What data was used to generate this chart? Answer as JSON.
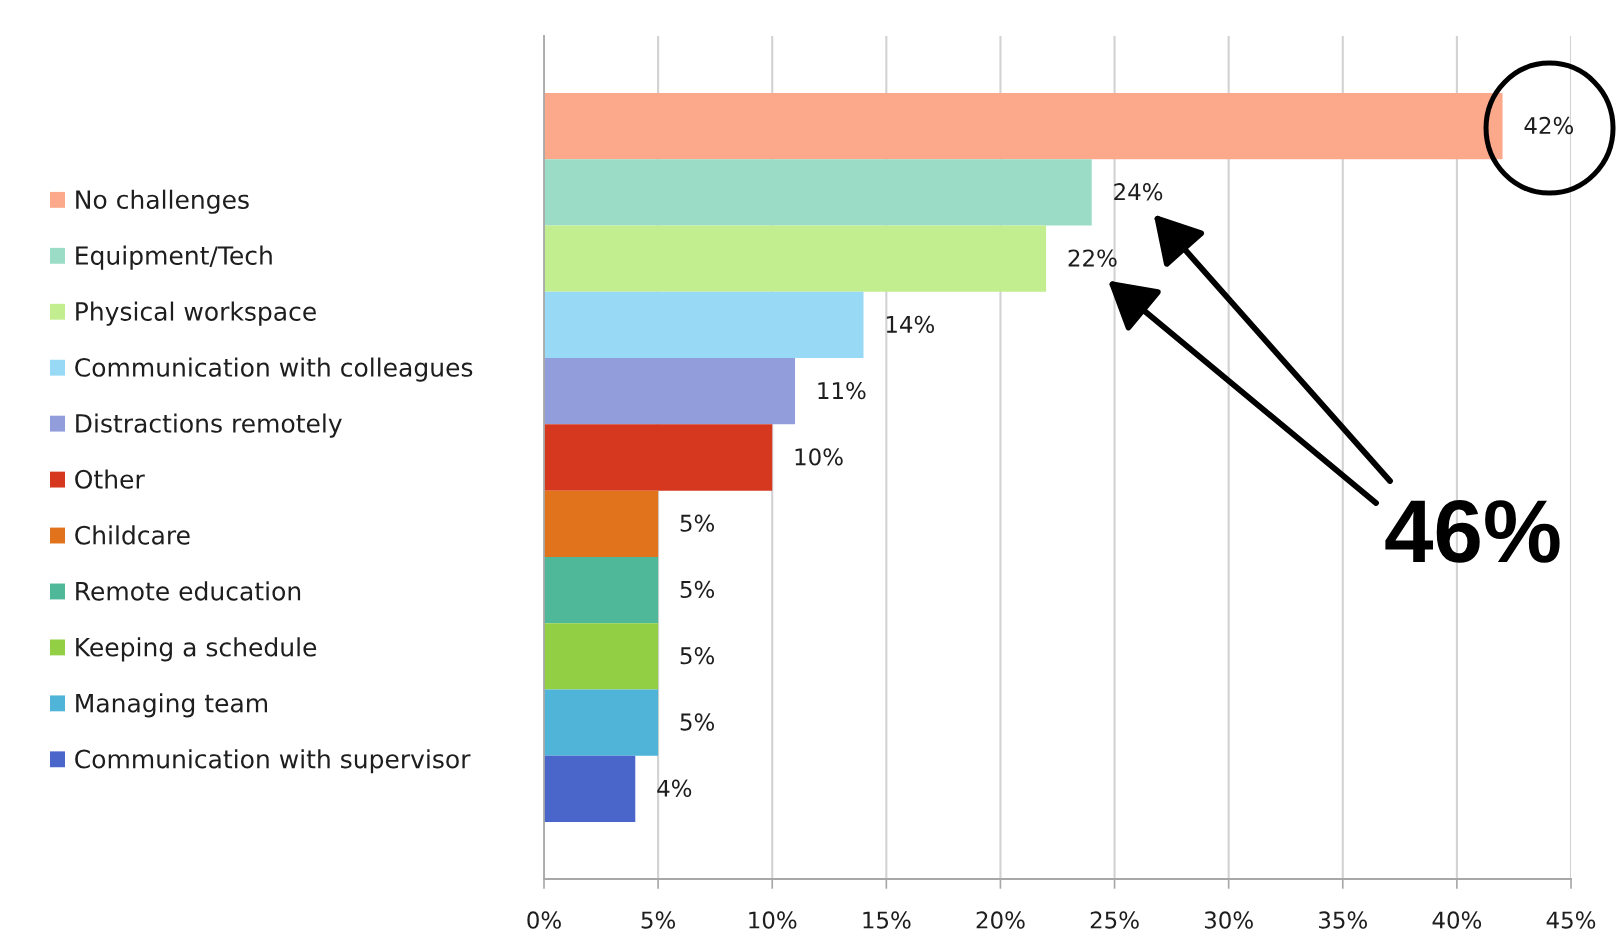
{
  "chart_data": {
    "type": "bar",
    "orientation": "horizontal",
    "categories": [
      null
    ],
    "series": [
      {
        "name": "No challenges",
        "color": "#fca88a",
        "values": [
          42
        ],
        "value_labels": [
          "42%"
        ]
      },
      {
        "name": "Equipment/Tech",
        "color": "#9adcc5",
        "values": [
          24
        ],
        "value_labels": [
          "24%"
        ]
      },
      {
        "name": "Physical workspace",
        "color": "#c3ee90",
        "values": [
          22
        ],
        "value_labels": [
          "22%"
        ]
      },
      {
        "name": "Communication with colleagues",
        "color": "#98d9f5",
        "values": [
          14
        ],
        "value_labels": [
          "14%"
        ]
      },
      {
        "name": "Distractions remotely",
        "color": "#929edb",
        "values": [
          11
        ],
        "value_labels": [
          "11%"
        ]
      },
      {
        "name": "Other",
        "color": "#d5381f",
        "values": [
          10
        ],
        "value_labels": [
          "10%"
        ]
      },
      {
        "name": "Childcare",
        "color": "#e2731d",
        "values": [
          5
        ],
        "value_labels": [
          "5%"
        ]
      },
      {
        "name": "Remote education",
        "color": "#4fb898",
        "values": [
          5
        ],
        "value_labels": [
          "5%"
        ]
      },
      {
        "name": "Keeping a schedule",
        "color": "#92cf45",
        "values": [
          5
        ],
        "value_labels": [
          "5%"
        ]
      },
      {
        "name": "Managing team",
        "color": "#4fb4d8",
        "values": [
          5
        ],
        "value_labels": [
          "5%"
        ]
      },
      {
        "name": "Communication with supervisor",
        "color": "#4b66cb",
        "values": [
          4
        ],
        "value_labels": [
          "4%"
        ]
      }
    ],
    "xlim": [
      0,
      45
    ],
    "xticks": [
      {
        "value": 0,
        "label": "0%"
      },
      {
        "value": 5,
        "label": "5%"
      },
      {
        "value": 10,
        "label": "10%"
      },
      {
        "value": 15,
        "label": "15%"
      },
      {
        "value": 20,
        "label": "20%"
      },
      {
        "value": 25,
        "label": "25%"
      },
      {
        "value": 30,
        "label": "30%"
      },
      {
        "value": 35,
        "label": "35%"
      },
      {
        "value": 40,
        "label": "40%"
      },
      {
        "value": 45,
        "label": "45%"
      }
    ],
    "grid": "x",
    "legend": "left",
    "tick_labels": "x",
    "annotations": [
      "46%"
    ]
  }
}
